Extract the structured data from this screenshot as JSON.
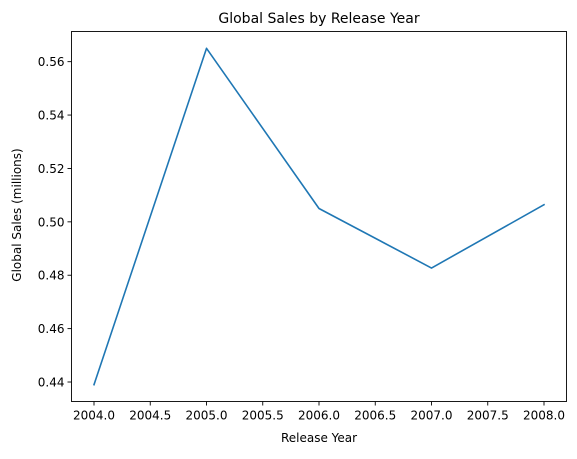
{
  "chart_data": {
    "type": "line",
    "title": "Global Sales by Release Year",
    "xlabel": "Release Year",
    "ylabel": "Global Sales (millions)",
    "x": [
      2004,
      2005,
      2006,
      2007,
      2008
    ],
    "series": [
      {
        "values": [
          0.439,
          0.565,
          0.505,
          0.4827,
          0.5064
        ],
        "color": "#1f77b4"
      }
    ],
    "xlim": [
      2003.8,
      2008.2
    ],
    "ylim": [
      0.4327,
      0.5713
    ],
    "xticks": [
      "2004.0",
      "2004.5",
      "2005.0",
      "2005.5",
      "2006.0",
      "2006.5",
      "2007.0",
      "2007.5",
      "2008.0"
    ],
    "yticks": [
      "0.44",
      "0.46",
      "0.48",
      "0.50",
      "0.52",
      "0.54",
      "0.56"
    ],
    "grid": false,
    "legend": false
  }
}
